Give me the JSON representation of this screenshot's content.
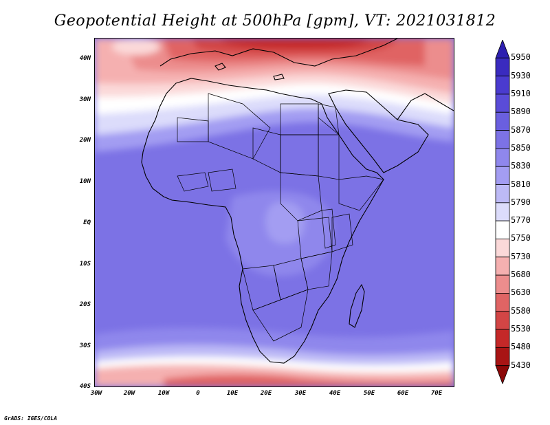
{
  "title": "Geopotential Height at 500hPa [gpm], VT: 2021031812",
  "footer": "GrADS: IGES/COLA",
  "map": {
    "lat_labels": [
      "40N",
      "30N",
      "20N",
      "10N",
      "EQ",
      "10S",
      "20S",
      "30S",
      "40S"
    ],
    "lon_labels": [
      "30W",
      "20W",
      "10W",
      "0",
      "10E",
      "20E",
      "30E",
      "40E",
      "50E",
      "60E",
      "70E"
    ]
  },
  "colorbar": {
    "levels": [
      "5950",
      "5930",
      "5910",
      "5890",
      "5870",
      "5850",
      "5830",
      "5810",
      "5790",
      "5770",
      "5750",
      "5730",
      "5680",
      "5630",
      "5580",
      "5530",
      "5480",
      "5430"
    ],
    "colors_top_to_bottom": [
      "#2d1fb0",
      "#3a2bbf",
      "#4a3bcf",
      "#5a4cd8",
      "#6a5fdf",
      "#7c72e5",
      "#8f87ec",
      "#a39df2",
      "#bdbaf6",
      "#dcdcfb",
      "#ffffff",
      "#fbd9d9",
      "#f5b0b0",
      "#ec8d8d",
      "#e06464",
      "#d24545",
      "#c42828",
      "#a81414",
      "#8c0808"
    ]
  }
}
